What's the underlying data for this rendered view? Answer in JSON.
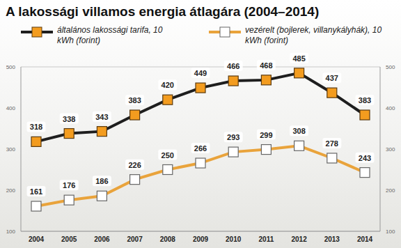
{
  "chart_data": {
    "type": "line",
    "title": "A lakossági villamos energia átlagára (2004–2014)",
    "categories": [
      "2004",
      "2005",
      "2006",
      "2007",
      "2008",
      "2009",
      "2010",
      "2011",
      "2012",
      "2013",
      "2014"
    ],
    "series": [
      {
        "name": "általános lakossági tarifa, 10 kWh (forint)",
        "color": "#1e1e1e",
        "marker": "square",
        "values": [
          318,
          338,
          343,
          383,
          420,
          449,
          466,
          468,
          485,
          437,
          383
        ]
      },
      {
        "name": "vezérelt (bojlerek, villanykályhák), 10 kWh (forint)",
        "color": "#e9a33b",
        "marker": "square",
        "values": [
          161,
          176,
          186,
          226,
          250,
          266,
          293,
          299,
          308,
          278,
          243
        ]
      }
    ],
    "ylim": [
      100,
      500
    ],
    "yticks": [
      100,
      200,
      300,
      400,
      500
    ],
    "grid": true,
    "data_labels": true
  }
}
